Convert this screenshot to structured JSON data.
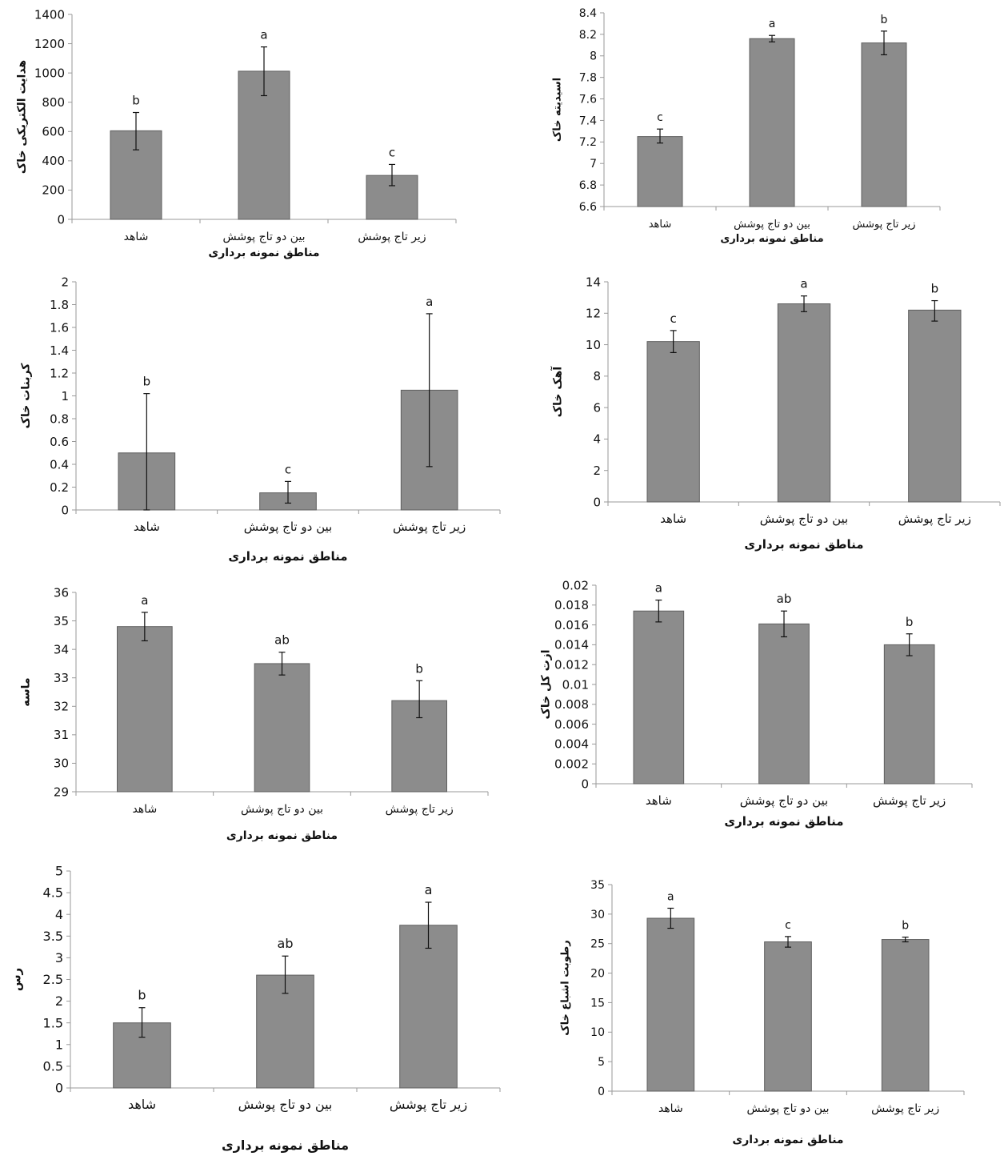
{
  "categories": [
    "شاهد",
    "بین دو تاج پوشش",
    "زیر تاج پوشش"
  ],
  "xlabel": "مناطق نمونه برداری",
  "chart_data": [
    {
      "type": "bar",
      "ylabel": "هدایت الکتریکی خاک",
      "ylim": [
        0,
        1400
      ],
      "yticks": [
        "0",
        "200",
        "400",
        "600",
        "800",
        "1000",
        "1200",
        "1400"
      ],
      "values": [
        605,
        1012,
        300
      ],
      "error_low": [
        475,
        845,
        230
      ],
      "error_high": [
        730,
        1178,
        375
      ],
      "letters": [
        "b",
        "a",
        "c"
      ]
    },
    {
      "type": "bar",
      "ylabel": "اسیدیته خاک",
      "ylim": [
        6.6,
        8.4
      ],
      "yticks": [
        "6.6",
        "6.8",
        "7",
        "7.2",
        "7.4",
        "7.6",
        "7.8",
        "8",
        "8.2",
        "8.4"
      ],
      "values": [
        7.25,
        8.16,
        8.12
      ],
      "error_low": [
        7.19,
        8.13,
        8.01
      ],
      "error_high": [
        7.32,
        8.19,
        8.23
      ],
      "letters": [
        "c",
        "a",
        "b"
      ]
    },
    {
      "type": "bar",
      "ylabel": "کربنات خاک",
      "ylim": [
        0,
        2
      ],
      "yticks": [
        "0",
        "0.2",
        "0.4",
        "0.6",
        "0.8",
        "1",
        "1.2",
        "1.4",
        "1.6",
        "1.8",
        "2"
      ],
      "values": [
        0.5,
        0.15,
        1.05
      ],
      "error_low": [
        0,
        0.06,
        0.38
      ],
      "error_high": [
        1.02,
        0.25,
        1.72
      ],
      "letters": [
        "b",
        "c",
        "a"
      ]
    },
    {
      "type": "bar",
      "ylabel": "آهک خاک",
      "ylim": [
        0,
        14
      ],
      "yticks": [
        "0",
        "2",
        "4",
        "6",
        "8",
        "10",
        "12",
        "14"
      ],
      "values": [
        10.2,
        12.6,
        12.2
      ],
      "error_low": [
        9.5,
        12.1,
        11.5
      ],
      "error_high": [
        10.9,
        13.1,
        12.8
      ],
      "letters": [
        "c",
        "a",
        "b"
      ]
    },
    {
      "type": "bar",
      "ylabel": "ماسه",
      "ylim": [
        29,
        36
      ],
      "yticks": [
        "29",
        "30",
        "31",
        "32",
        "33",
        "34",
        "35",
        "36"
      ],
      "values": [
        34.8,
        33.5,
        32.2
      ],
      "error_low": [
        34.3,
        33.1,
        31.6
      ],
      "error_high": [
        35.3,
        33.9,
        32.9
      ],
      "letters": [
        "a",
        "ab",
        "b"
      ]
    },
    {
      "type": "bar",
      "ylabel": "ازت کل خاک",
      "ylim": [
        0,
        0.02
      ],
      "yticks": [
        "0",
        "0.002",
        "0.004",
        "0.006",
        "0.008",
        "0.01",
        "0.012",
        "0.014",
        "0.016",
        "0.018",
        "0.02"
      ],
      "values": [
        0.0174,
        0.0161,
        0.014
      ],
      "error_low": [
        0.0163,
        0.0148,
        0.0129
      ],
      "error_high": [
        0.0185,
        0.0174,
        0.0151
      ],
      "letters": [
        "a",
        "ab",
        "b"
      ]
    },
    {
      "type": "bar",
      "ylabel": "رس",
      "ylim": [
        0,
        5
      ],
      "yticks": [
        "0",
        "0.5",
        "1",
        "1.5",
        "2",
        "2.5",
        "3",
        "3.5",
        "4",
        "4.5",
        "5"
      ],
      "values": [
        1.5,
        2.6,
        3.75
      ],
      "error_low": [
        1.17,
        2.18,
        3.22
      ],
      "error_high": [
        1.85,
        3.04,
        4.28
      ],
      "letters": [
        "b",
        "ab",
        "a"
      ]
    },
    {
      "type": "bar",
      "ylabel": "رطوبت اشباع خاک",
      "ylim": [
        0,
        35
      ],
      "yticks": [
        "0",
        "5",
        "10",
        "15",
        "20",
        "25",
        "30",
        "35"
      ],
      "values": [
        29.3,
        25.3,
        25.7
      ],
      "error_low": [
        27.6,
        24.4,
        25.3
      ],
      "error_high": [
        31.0,
        26.2,
        26.1
      ],
      "letters": [
        "a",
        "c",
        "b"
      ]
    }
  ]
}
